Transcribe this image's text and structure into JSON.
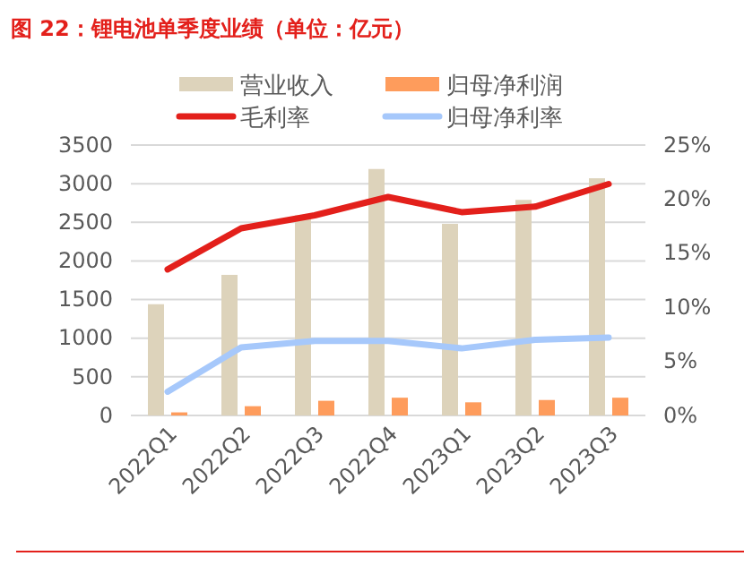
{
  "chart_data": {
    "type": "bar",
    "title": "图 22：锂电池单季度业绩（单位：亿元）",
    "categories": [
      "2022Q1",
      "2022Q2",
      "2022Q3",
      "2022Q4",
      "2023Q1",
      "2023Q2",
      "2023Q3"
    ],
    "series": [
      {
        "name": "营业收入",
        "color": "#ddd3bb",
        "values": [
          1440,
          1820,
          2590,
          3190,
          2480,
          2790,
          3070
        ]
      },
      {
        "name": "归母净利润",
        "color": "#fe9c5c",
        "values": [
          40,
          120,
          190,
          230,
          170,
          200,
          230
        ]
      },
      {
        "name": "毛利率",
        "type": "line",
        "axis": "y2",
        "color": "#e3201b",
        "values": [
          13.5,
          17.3,
          18.5,
          20.2,
          18.8,
          19.3,
          21.4
        ]
      },
      {
        "name": "归母净利率",
        "type": "line",
        "axis": "y2",
        "color": "#a6c8fb",
        "values": [
          2.2,
          6.3,
          6.9,
          6.9,
          6.2,
          7.0,
          7.2
        ]
      }
    ],
    "ylim": [
      0,
      3500
    ],
    "yticks": [
      0,
      500,
      1000,
      1500,
      2000,
      2500,
      3000,
      3500
    ],
    "y2lim": [
      0,
      25
    ],
    "y2ticks": [
      {
        "value": 0,
        "label": "0%"
      },
      {
        "value": 5,
        "label": "5%"
      },
      {
        "value": 10,
        "label": "10%"
      },
      {
        "value": 15,
        "label": "15%"
      },
      {
        "value": 20,
        "label": "20%"
      },
      {
        "value": 25,
        "label": "25%"
      }
    ],
    "grid": "y",
    "legend": "top",
    "marker": "none",
    "line_style": "solid"
  }
}
